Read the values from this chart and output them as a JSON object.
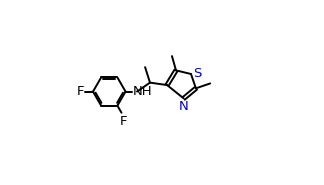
{
  "background_color": "#ffffff",
  "line_color": "#000000",
  "heteroatom_color": "#0000cd",
  "figure_width": 3.24,
  "figure_height": 1.85,
  "dpi": 100,
  "font_size_atoms": 9.5,
  "line_width": 1.4,
  "S_label": "S",
  "N_label": "N",
  "NH_label": "NH",
  "F_label": "F"
}
